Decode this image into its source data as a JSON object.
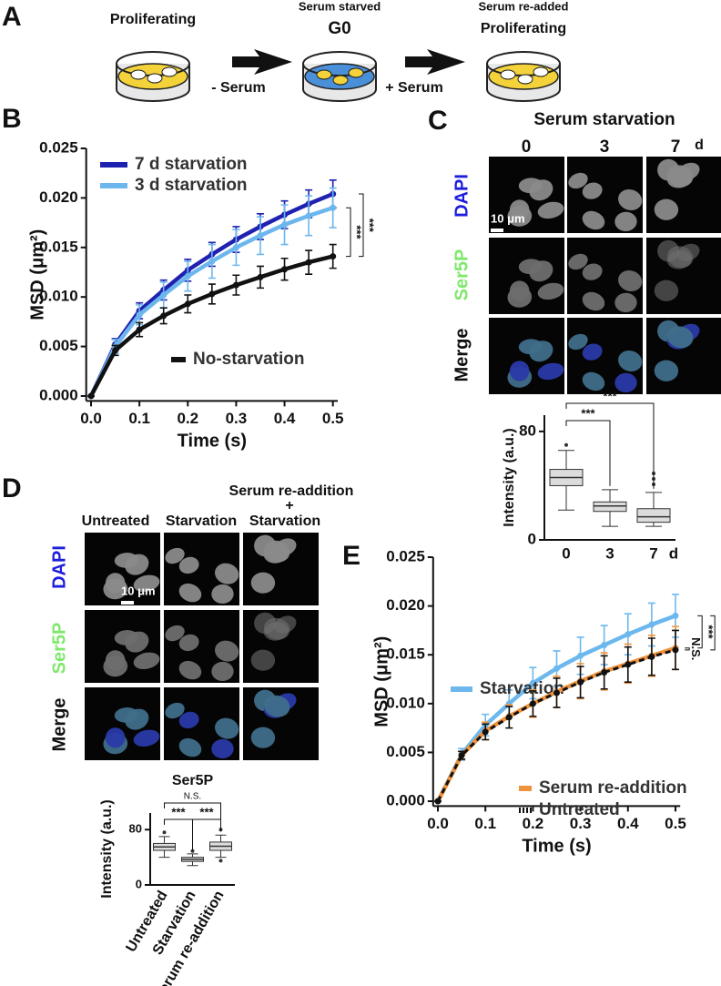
{
  "figure": {
    "panels": [
      "A",
      "B",
      "C",
      "D",
      "E"
    ],
    "schematic": {
      "stages": [
        "Proliferating",
        "Serum starved",
        "G0",
        "Serum re-added",
        "Proliferating"
      ],
      "arrows": [
        "- Serum",
        "+ Serum"
      ]
    },
    "micrograph_c": {
      "title": "Serum starvation",
      "columns": [
        "0",
        "3",
        "7"
      ],
      "unit": "d",
      "rows": [
        "DAPI",
        "Ser5P",
        "Merge"
      ],
      "scale_bar": "10 μm"
    },
    "micrograph_d": {
      "columns": [
        "Untreated",
        "Starvation",
        "Serum re-addition",
        "+",
        "Starvation"
      ],
      "rows": [
        "DAPI",
        "Ser5P",
        "Merge"
      ],
      "scale_bar": "10 μm"
    }
  },
  "chart_data": [
    {
      "type": "line",
      "xlabel": "Time (s)",
      "ylabel": "MSD (μm²)",
      "x": [
        0,
        0.05,
        0.1,
        0.15,
        0.2,
        0.25,
        0.3,
        0.35,
        0.4,
        0.45,
        0.5
      ],
      "xlim": [
        -0.01,
        0.51
      ],
      "ylim": [
        -0.0005,
        0.025
      ],
      "xticks": [
        {
          "value": 0,
          "label": "0.0"
        },
        {
          "value": 0.1,
          "label": "0.1"
        },
        {
          "value": 0.2,
          "label": "0.2"
        },
        {
          "value": 0.3,
          "label": "0.3"
        },
        {
          "value": 0.4,
          "label": "0.4"
        },
        {
          "value": 0.5,
          "label": "0.5"
        }
      ],
      "yticks": [
        {
          "value": 0,
          "label": "0.000"
        },
        {
          "value": 0.005,
          "label": "0.005"
        },
        {
          "value": 0.01,
          "label": "0.010"
        },
        {
          "value": 0.015,
          "label": "0.015"
        },
        {
          "value": 0.02,
          "label": "0.020"
        },
        {
          "value": 0.025,
          "label": "0.025"
        }
      ],
      "series": [
        {
          "name": "7 d starvation",
          "color": "#1f22b0",
          "values": [
            0,
            0.0052,
            0.0086,
            0.0107,
            0.0127,
            0.0143,
            0.0158,
            0.0171,
            0.0183,
            0.0194,
            0.0204
          ],
          "errors": [
            0,
            0.0006,
            0.0008,
            0.001,
            0.0011,
            0.0012,
            0.0013,
            0.0013,
            0.0014,
            0.0014,
            0.0014
          ]
        },
        {
          "name": "3 d starvation",
          "color": "#6cb6ee",
          "values": [
            0,
            0.005,
            0.0082,
            0.0102,
            0.0121,
            0.0136,
            0.015,
            0.0162,
            0.0173,
            0.0182,
            0.019
          ],
          "errors": [
            0,
            0.0007,
            0.001,
            0.0013,
            0.0015,
            0.0017,
            0.0018,
            0.0019,
            0.002,
            0.002,
            0.002
          ]
        },
        {
          "name": "No-starvation",
          "color": "#111111",
          "values": [
            0,
            0.0046,
            0.0067,
            0.0081,
            0.0093,
            0.0103,
            0.0112,
            0.012,
            0.0128,
            0.0135,
            0.0141
          ],
          "errors": [
            0,
            0.0005,
            0.0007,
            0.0008,
            0.0009,
            0.001,
            0.001,
            0.0011,
            0.0011,
            0.0012,
            0.0012
          ]
        }
      ],
      "annotations": [
        "***",
        "***"
      ]
    },
    {
      "type": "box",
      "ylabel": "Intensity (a.u.)",
      "categories": [
        "0",
        "3",
        "7"
      ],
      "unit": "d",
      "ylim": [
        0,
        92
      ],
      "yticks": [
        0,
        80
      ],
      "series": {
        "min": [
          22,
          10,
          10
        ],
        "q1": [
          40,
          21,
          13
        ],
        "median": [
          46,
          25,
          17
        ],
        "q3": [
          52,
          28,
          23
        ],
        "max": [
          66,
          37,
          35
        ],
        "outliers": [
          [
            70
          ],
          [],
          [
            41,
            45,
            49
          ]
        ]
      },
      "annotations": [
        "***",
        "***"
      ]
    },
    {
      "type": "box",
      "title": "Ser5P",
      "ylabel": "Intensity (a.u.)",
      "categories": [
        "Untreated",
        "Starvation",
        "Serum re-addition"
      ],
      "ylim": [
        0,
        104
      ],
      "yticks": [
        0,
        80
      ],
      "series": {
        "min": [
          40,
          28,
          40
        ],
        "q1": [
          50,
          34,
          50
        ],
        "median": [
          55,
          37,
          56
        ],
        "q3": [
          60,
          40,
          62
        ],
        "max": [
          70,
          45,
          72
        ],
        "outliers": [
          [
            76
          ],
          [
            49
          ],
          [
            35,
            80
          ]
        ]
      },
      "annotations": [
        "N.S.",
        "***",
        "***"
      ]
    },
    {
      "type": "line",
      "xlabel": "Time (s)",
      "ylabel": "MSD (μm²)",
      "x": [
        0,
        0.05,
        0.1,
        0.15,
        0.2,
        0.25,
        0.3,
        0.35,
        0.4,
        0.45,
        0.5
      ],
      "xlim": [
        -0.01,
        0.51
      ],
      "ylim": [
        -0.0005,
        0.025
      ],
      "xticks": [
        {
          "value": 0,
          "label": "0.0"
        },
        {
          "value": 0.1,
          "label": "0.1"
        },
        {
          "value": 0.2,
          "label": "0.2"
        },
        {
          "value": 0.3,
          "label": "0.3"
        },
        {
          "value": 0.4,
          "label": "0.4"
        },
        {
          "value": 0.5,
          "label": "0.5"
        }
      ],
      "yticks": [
        {
          "value": 0,
          "label": "0.000"
        },
        {
          "value": 0.005,
          "label": "0.005"
        },
        {
          "value": 0.01,
          "label": "0.010"
        },
        {
          "value": 0.015,
          "label": "0.015"
        },
        {
          "value": 0.02,
          "label": "0.020"
        },
        {
          "value": 0.025,
          "label": "0.025"
        }
      ],
      "series": [
        {
          "name": "Starvation",
          "color": "#6cb8ee",
          "values": [
            0,
            0.0048,
            0.0078,
            0.01,
            0.0121,
            0.0136,
            0.0149,
            0.016,
            0.0171,
            0.0181,
            0.019
          ],
          "errors": [
            0,
            0.0006,
            0.0011,
            0.0014,
            0.0016,
            0.0018,
            0.0019,
            0.002,
            0.0021,
            0.0022,
            0.0022
          ]
        },
        {
          "name": "Serum re-addition",
          "color": "#f0923c",
          "values": [
            0,
            0.0047,
            0.0072,
            0.0087,
            0.01,
            0.0112,
            0.0123,
            0.0133,
            0.0141,
            0.0149,
            0.0157
          ],
          "errors": [
            0,
            0.0004,
            0.0009,
            0.0012,
            0.0014,
            0.0016,
            0.0018,
            0.0019,
            0.002,
            0.0021,
            0.0022
          ]
        },
        {
          "name": "Untreated",
          "color": "#111111",
          "dashed": true,
          "values": [
            0,
            0.0047,
            0.0071,
            0.0086,
            0.01,
            0.0111,
            0.0122,
            0.0132,
            0.014,
            0.0148,
            0.0155
          ],
          "errors": [
            0,
            0.0004,
            0.0008,
            0.0011,
            0.0013,
            0.0015,
            0.0016,
            0.0017,
            0.0018,
            0.0019,
            0.002
          ]
        }
      ],
      "annotations": [
        "N.S.",
        "***",
        "***"
      ]
    }
  ]
}
